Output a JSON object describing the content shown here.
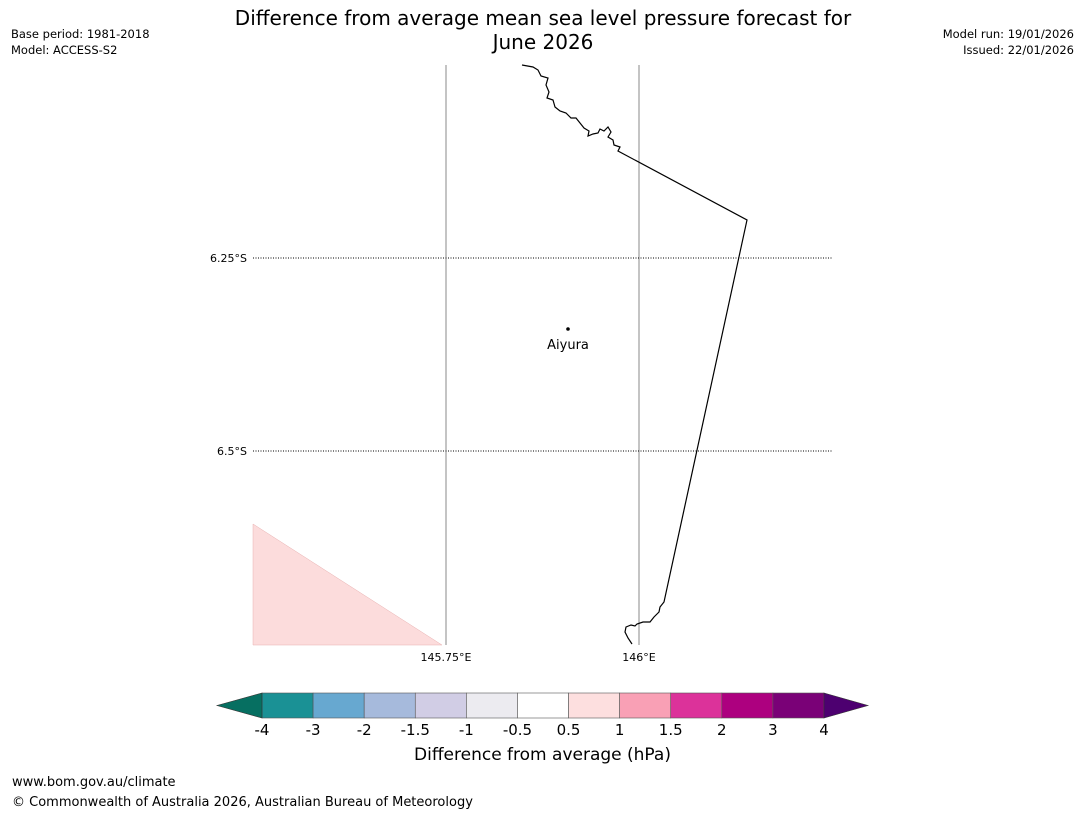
{
  "header": {
    "title_line1": "Difference from average mean sea level pressure forecast for",
    "title_line2": "June 2026",
    "base_period": "Base period: 1981-2018",
    "model": "Model: ACCESS-S2",
    "model_run": "Model run: 19/01/2026",
    "issued": "Issued: 22/01/2026"
  },
  "map": {
    "lat_labels": [
      "6.25°S",
      "6.5°S"
    ],
    "lon_labels": [
      "145.75°E",
      "146°E"
    ],
    "place": "Aiyura",
    "fill_color": "#fcdcdc"
  },
  "colorbar": {
    "label": "Difference from average (hPa)",
    "ticks": [
      "-4",
      "-3",
      "-2",
      "-1.5",
      "-1",
      "-0.5",
      "0.5",
      "1",
      "1.5",
      "2",
      "3",
      "4"
    ],
    "colors": [
      "#1a9195",
      "#67a8d0",
      "#a6badc",
      "#d1cde5",
      "#ecebf0",
      "#ffffff",
      "#fddfdf",
      "#f9a0b5",
      "#dc329a",
      "#ad007f",
      "#7a0177"
    ],
    "under_color": "#066f61",
    "over_color": "#4d0070"
  },
  "footer": {
    "url": "www.bom.gov.au/climate",
    "copyright": "© Commonwealth of Australia 2026, Australian Bureau of Meteorology"
  }
}
